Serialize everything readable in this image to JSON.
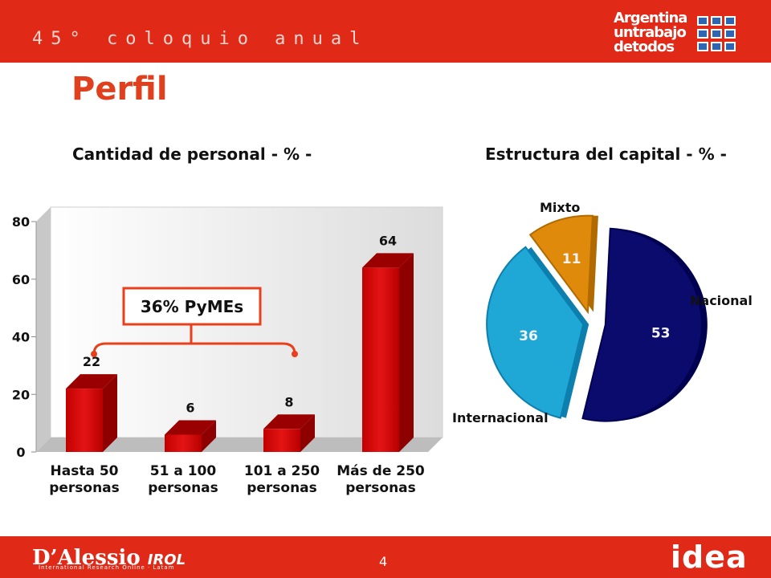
{
  "header": {
    "conference_text": "45° coloquio anual",
    "logo_lines": [
      "Argentina",
      "untrabajo",
      "detodos"
    ]
  },
  "page_title": "Perfil",
  "left_subtitle": "Cantidad de personal - % -",
  "right_subtitle": "Estructura del capital - % -",
  "callout_label": "36% PyMEs",
  "footer": {
    "page_number": "4",
    "brand_main": "D’Alessio",
    "brand_irol": "IROL",
    "brand_sub": "International Research Online · Latam",
    "brand_right": "idea"
  },
  "colors": {
    "accent_red": "#e02a17",
    "title_orange": "#e0401e",
    "bar_red": "#d40000",
    "pie_nacional": "#0b0b6e",
    "pie_internacional": "#1fa8d6",
    "pie_mixto": "#e08a0c"
  },
  "chart_data": [
    {
      "type": "bar",
      "title": "Cantidad de personal - % -",
      "categories": [
        [
          "Hasta 50",
          "personas"
        ],
        [
          "51 a 100",
          "personas"
        ],
        [
          "101 a 250",
          "personas"
        ],
        [
          "Más de 250",
          "personas"
        ]
      ],
      "values": [
        22,
        6,
        8,
        64
      ],
      "ylim": [
        0,
        80
      ],
      "yticks": [
        0,
        20,
        40,
        60,
        80
      ],
      "grid": false
    },
    {
      "type": "pie",
      "title": "Estructura del capital - % -",
      "slices": [
        {
          "label": "Nacional",
          "value": 53
        },
        {
          "label": "Internacional",
          "value": 36
        },
        {
          "label": "Mixto",
          "value": 11
        }
      ]
    }
  ]
}
